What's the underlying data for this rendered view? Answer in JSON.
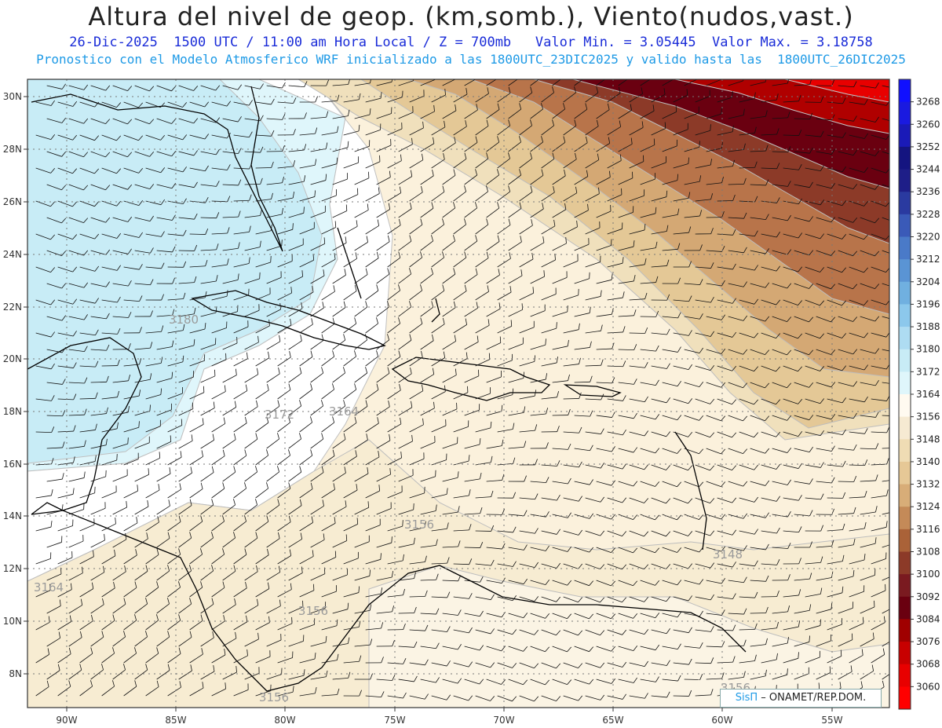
{
  "header": {
    "title": "Altura del nivel de geop. (km,somb.), Viento(nudos,vast.)",
    "line1": "26-Dic-2025  1500 UTC / 11:00 am Hora Local / Z = 700mb   Valor Min. = 3.05445  Valor Max. = 3.18758",
    "line2": "Pronostico con el Modelo Atmosferico WRF inicializado a las 1800UTC_23DIC2025 y valido hasta las  1800UTC_26DIC2025"
  },
  "map": {
    "lon_labels": [
      "90W",
      "85W",
      "80W",
      "75W",
      "70W",
      "65W",
      "60W",
      "55W"
    ],
    "lat_labels": [
      "30N",
      "28N",
      "26N",
      "24N",
      "22N",
      "20N",
      "18N",
      "16N",
      "14N",
      "12N",
      "10N",
      "8N"
    ],
    "contour_labels": [
      "3180",
      "3172",
      "3164",
      "3156",
      "3156",
      "3156",
      "3148",
      "3164",
      "3156"
    ]
  },
  "colorbar": {
    "levels": [
      3268,
      3260,
      3252,
      3244,
      3236,
      3228,
      3220,
      3212,
      3204,
      3196,
      3188,
      3180,
      3172,
      3164,
      3156,
      3148,
      3140,
      3132,
      3124,
      3116,
      3108,
      3100,
      3092,
      3084,
      3076,
      3068,
      3060
    ],
    "colors": [
      "#1010ff",
      "#1a1ae0",
      "#1a1ab8",
      "#141480",
      "#1e1e88",
      "#2a3aa0",
      "#3a5ab8",
      "#4a7ac8",
      "#5a94d4",
      "#70b0e0",
      "#8cc8ec",
      "#aedcf2",
      "#c8ecf6",
      "#dff6fb",
      "#fffaf0",
      "#f6ead2",
      "#efdcb4",
      "#e6c896",
      "#d8ad78",
      "#c48a58",
      "#aa6238",
      "#8c3a28",
      "#7a1a20",
      "#6a0010",
      "#a00000",
      "#c80000",
      "#e80000",
      "#ff0000"
    ]
  },
  "credit": {
    "brand": "SisΠ",
    "text": "– ONAMET/REP.DOM."
  }
}
